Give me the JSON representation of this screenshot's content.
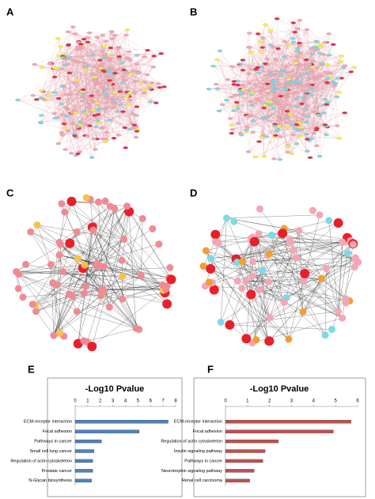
{
  "panel_labels": [
    "A",
    "B",
    "C",
    "D",
    "E",
    "F"
  ],
  "chart_data": [
    {
      "type": "bar",
      "orientation": "horizontal",
      "title": "-Log10 Pvalue",
      "categories": [
        "ECM-receptor interaction",
        "Focal adhesion",
        "Pathways in cancer",
        "Small cell lung cancer",
        "Regulation of actin cytoskeleton",
        "Prostate cancer",
        "N-Glycan biosynthesis"
      ],
      "values": [
        7.4,
        5.1,
        2.1,
        1.5,
        1.4,
        1.4,
        1.3
      ],
      "color": "#4f81bd",
      "xlim": [
        0,
        8
      ],
      "xticks": [
        0,
        1,
        2,
        3,
        4,
        5,
        6,
        7,
        8
      ]
    },
    {
      "type": "bar",
      "orientation": "horizontal",
      "title": "-Log10 Pvalue",
      "categories": [
        "ECM-receptor interaction",
        "Focal adhesion",
        "Regulation of actin cytoskeleton",
        "Insulin signaling pathway",
        "Pathways in cancer",
        "Neurotrophin signaling pathway",
        "Renal cell carcinoma"
      ],
      "values": [
        5.7,
        4.9,
        2.4,
        1.8,
        1.7,
        1.3,
        1.1
      ],
      "color": "#c0504d",
      "xlim": [
        0,
        6
      ],
      "xticks": [
        0,
        1,
        2,
        3,
        4,
        5,
        6
      ]
    }
  ]
}
